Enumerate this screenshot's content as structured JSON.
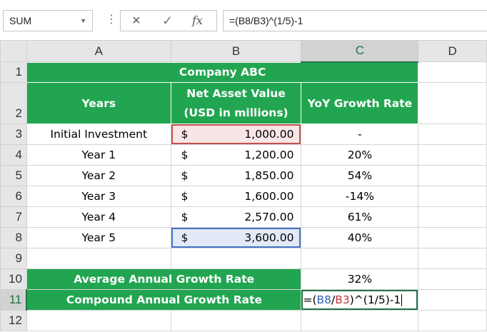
{
  "formula_bar": {
    "name_box": "SUM",
    "cancel_icon": "×",
    "enter_icon": "✓",
    "fx_label": "fx",
    "formula": "=(B8/B3)^(1/5)-1"
  },
  "columns": [
    "A",
    "B",
    "C",
    "D"
  ],
  "rows": [
    "1",
    "2",
    "3",
    "4",
    "5",
    "6",
    "7",
    "8",
    "9",
    "10",
    "11",
    "12"
  ],
  "sheet": {
    "title": "Company ABC",
    "headers": {
      "years": "Years",
      "nav_line1": "Net Asset Value",
      "nav_line2": "(USD in millions)",
      "growth": "YoY Growth Rate"
    },
    "currency": "$",
    "data": [
      {
        "year": "Initial Investment",
        "value": "1,000.00",
        "growth": "-"
      },
      {
        "year": "Year 1",
        "value": "1,200.00",
        "growth": "20%"
      },
      {
        "year": "Year 2",
        "value": "1,850.00",
        "growth": "54%"
      },
      {
        "year": "Year 3",
        "value": "1,600.00",
        "growth": "-14%"
      },
      {
        "year": "Year 4",
        "value": "2,570.00",
        "growth": "61%"
      },
      {
        "year": "Year 5",
        "value": "3,600.00",
        "growth": "40%"
      }
    ],
    "avg_label": "Average Annual Growth Rate",
    "avg_value": "32%",
    "cagr_label": "Compound Annual Growth Rate",
    "edit": {
      "p1": "=(",
      "ref1": "B8",
      "slash": "/",
      "ref2": "B3",
      "p2": ")^(1/5)-1"
    }
  },
  "colors": {
    "header_green": "#22a550",
    "selection_green": "#217346",
    "ref_blue": "#4472c4",
    "ref_red": "#c0504d"
  }
}
